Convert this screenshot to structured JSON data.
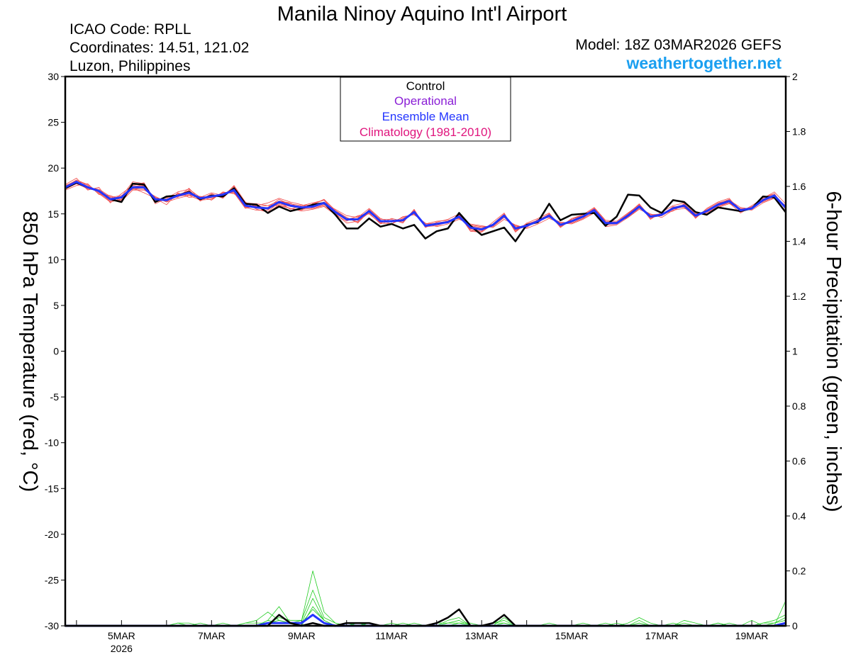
{
  "header": {
    "title": "Manila Ninoy Aquino Int'l Airport",
    "icao": "ICAO Code: RPLL",
    "coordinates": "Coordinates: 14.51, 121.02",
    "region": "Luzon, Philippines",
    "model": "Model: 18Z 03MAR2026 GEFS",
    "site": "weathertogether.net"
  },
  "legend": {
    "control": "Control",
    "operational": "Operational",
    "ensemble_mean": "Ensemble Mean",
    "climatology": "Climatology (1981-2010)"
  },
  "colors": {
    "control": "#000000",
    "operational": "#8a1ed6",
    "ensemble_mean": "#2335ff",
    "climatology": "#e0157d",
    "members_temp": "#f04a4a",
    "members_precip": "#22cc22",
    "site": "#1a9ff0"
  },
  "chart_data": {
    "type": "line",
    "ylabel_left": "850 hPa Temperature (red, °C)",
    "ylabel_right": "6-hour Precipitation (green, inches)",
    "ylim_left": [
      -30,
      30
    ],
    "ylim_right": [
      0,
      2
    ],
    "yticks_left": [
      "30",
      "25",
      "20",
      "15",
      "10",
      "5",
      "0",
      "-5",
      "-10",
      "-15",
      "-20",
      "-25",
      "-30"
    ],
    "yticks_right": [
      "2",
      "1.8",
      "1.6",
      "1.4",
      "1.2",
      "1",
      "0.8",
      "0.6",
      "0.4",
      "0.2",
      "0"
    ],
    "x_start": "2026-03-03T18:00Z",
    "x_step_hours": 6,
    "xticks": [
      {
        "label": "5MAR",
        "sublabel": "2026",
        "x": "2026-03-05T00:00Z"
      },
      {
        "label": "7MAR",
        "sublabel": "",
        "x": "2026-03-07T00:00Z"
      },
      {
        "label": "9MAR",
        "sublabel": "",
        "x": "2026-03-09T00:00Z"
      },
      {
        "label": "11MAR",
        "sublabel": "",
        "x": "2026-03-11T00:00Z"
      },
      {
        "label": "13MAR",
        "sublabel": "",
        "x": "2026-03-13T00:00Z"
      },
      {
        "label": "15MAR",
        "sublabel": "",
        "x": "2026-03-15T00:00Z"
      },
      {
        "label": "17MAR",
        "sublabel": "",
        "x": "2026-03-17T00:00Z"
      },
      {
        "label": "19MAR",
        "sublabel": "",
        "x": "2026-03-19T00:00Z"
      }
    ],
    "temperature": {
      "control": [
        17.8,
        18.4,
        17.9,
        17.5,
        16.6,
        16.3,
        18.3,
        18.2,
        16.3,
        16.9,
        17.0,
        17.4,
        16.6,
        17.0,
        16.9,
        17.8,
        16.1,
        16.0,
        15.1,
        15.8,
        15.3,
        15.6,
        16.0,
        16.2,
        14.9,
        13.4,
        13.4,
        14.5,
        13.6,
        13.9,
        13.4,
        13.8,
        12.3,
        13.1,
        13.4,
        15.1,
        13.7,
        12.7,
        13.1,
        13.5,
        12.0,
        13.8,
        14.1,
        16.1,
        14.3,
        14.9,
        15.0,
        15.1,
        13.7,
        14.7,
        17.1,
        17.0,
        15.7,
        15.1,
        16.5,
        16.3,
        15.2,
        14.9,
        15.7,
        15.5,
        15.3,
        15.6,
        16.9,
        16.8,
        15.2
      ],
      "ensemble_mean": [
        17.9,
        18.5,
        17.9,
        17.5,
        16.6,
        16.8,
        17.9,
        17.9,
        16.6,
        16.5,
        17.0,
        17.3,
        16.7,
        16.9,
        17.1,
        17.6,
        15.9,
        15.7,
        15.6,
        16.3,
        15.9,
        15.7,
        15.8,
        16.2,
        15.2,
        14.4,
        14.4,
        15.3,
        14.2,
        14.2,
        14.3,
        15.2,
        13.7,
        13.9,
        14.1,
        14.7,
        13.5,
        13.3,
        13.8,
        14.8,
        13.4,
        13.7,
        14.2,
        14.8,
        13.8,
        14.2,
        14.7,
        15.4,
        14.0,
        14.0,
        14.8,
        15.8,
        14.7,
        14.9,
        15.6,
        15.9,
        14.8,
        15.3,
        16.0,
        16.4,
        15.4,
        15.6,
        16.5,
        17.0,
        15.7
      ],
      "members": [
        [
          18.0,
          18.7,
          18.2,
          17.3,
          16.4,
          16.9,
          18.5,
          18.3,
          16.1,
          16.7,
          17.4,
          17.7,
          16.8,
          17.3,
          17.0,
          18.0,
          16.2,
          15.8,
          15.1,
          16.0,
          15.6,
          15.4,
          16.1,
          16.5,
          15.0,
          14.0,
          14.2,
          15.1,
          13.9,
          14.3,
          14.1,
          15.3,
          13.6,
          13.7,
          14.1,
          14.9,
          13.2,
          13.0,
          13.9,
          14.9,
          13.2,
          13.8,
          14.0,
          15.0,
          13.5,
          14.4,
          14.9,
          15.3,
          14.1,
          14.0,
          15.0,
          16.1,
          14.6,
          14.8,
          15.8,
          15.7,
          14.6,
          15.5,
          16.2,
          16.5,
          15.7,
          15.5,
          16.8,
          17.2,
          15.6
        ],
        [
          17.7,
          18.3,
          17.8,
          17.7,
          16.9,
          16.4,
          17.6,
          17.6,
          16.9,
          16.3,
          16.7,
          17.0,
          16.5,
          16.6,
          17.3,
          17.3,
          15.6,
          15.9,
          16.2,
          16.7,
          16.3,
          16.0,
          15.6,
          16.0,
          15.5,
          14.8,
          14.6,
          15.6,
          14.5,
          14.1,
          14.6,
          15.0,
          13.9,
          14.2,
          14.3,
          14.5,
          13.8,
          13.6,
          13.6,
          14.6,
          13.7,
          13.5,
          14.4,
          14.6,
          14.1,
          14.0,
          14.5,
          15.6,
          13.8,
          14.1,
          14.6,
          15.5,
          14.9,
          15.0,
          15.3,
          16.1,
          15.0,
          15.1,
          15.8,
          16.2,
          15.1,
          15.8,
          16.3,
          16.8,
          15.9
        ],
        [
          18.2,
          18.9,
          17.6,
          17.9,
          16.2,
          17.2,
          18.1,
          18.4,
          16.4,
          16.9,
          16.8,
          17.8,
          16.5,
          17.2,
          16.7,
          17.9,
          15.7,
          15.4,
          15.4,
          16.4,
          16.1,
          15.9,
          16.2,
          16.5,
          15.3,
          14.6,
          14.1,
          15.5,
          14.4,
          14.4,
          14.0,
          15.5,
          13.5,
          14.1,
          14.4,
          15.0,
          13.3,
          13.1,
          14.1,
          15.1,
          13.0,
          14.0,
          14.5,
          15.1,
          13.6,
          14.5,
          14.9,
          15.7,
          14.3,
          14.2,
          15.1,
          16.0,
          14.4,
          15.2,
          15.9,
          16.2,
          14.5,
          15.6,
          16.3,
          16.7,
          15.2,
          15.9,
          16.7,
          17.4,
          16.1
        ],
        [
          17.6,
          18.1,
          18.3,
          17.1,
          17.0,
          16.5,
          17.8,
          17.3,
          16.7,
          16.0,
          17.3,
          16.8,
          16.9,
          16.5,
          17.4,
          17.2,
          16.2,
          16.1,
          15.9,
          15.9,
          15.6,
          15.3,
          15.5,
          15.8,
          14.9,
          14.2,
          14.8,
          15.0,
          14.0,
          13.9,
          14.7,
          14.9,
          14.0,
          13.6,
          13.9,
          14.4,
          13.9,
          13.7,
          13.5,
          14.4,
          13.8,
          13.4,
          13.9,
          14.5,
          14.0,
          13.9,
          14.4,
          15.1,
          13.6,
          13.8,
          14.6,
          15.6,
          15.0,
          14.6,
          15.4,
          15.6,
          15.2,
          15.0,
          15.7,
          16.1,
          15.6,
          15.4,
          16.2,
          16.7,
          15.3
        ],
        [
          18.1,
          18.6,
          18.0,
          17.4,
          16.6,
          16.7,
          18.3,
          18.0,
          16.3,
          16.6,
          17.1,
          17.5,
          16.6,
          17.1,
          16.9,
          17.7,
          16.0,
          15.6,
          15.7,
          16.6,
          16.0,
          15.8,
          15.9,
          16.3,
          15.2,
          14.5,
          14.3,
          15.2,
          14.1,
          14.2,
          14.2,
          15.2,
          13.7,
          13.8,
          14.1,
          14.8,
          13.4,
          13.2,
          13.8,
          14.8,
          13.3,
          13.6,
          14.2,
          14.8,
          13.8,
          14.2,
          14.7,
          15.4,
          14.0,
          14.0,
          14.8,
          15.9,
          14.7,
          14.9,
          15.6,
          15.9,
          14.8,
          15.3,
          16.0,
          16.4,
          15.4,
          15.6,
          16.5,
          17.0,
          15.7
        ],
        [
          17.8,
          18.4,
          17.7,
          17.6,
          16.8,
          17.0,
          17.7,
          17.9,
          16.8,
          16.4,
          16.9,
          17.1,
          16.8,
          16.7,
          17.2,
          17.5,
          15.8,
          15.9,
          15.5,
          16.1,
          15.8,
          15.6,
          15.7,
          16.1,
          15.1,
          14.3,
          14.5,
          15.4,
          14.3,
          14.1,
          14.4,
          15.1,
          13.8,
          14.0,
          14.2,
          14.6,
          13.6,
          13.4,
          13.7,
          14.7,
          13.5,
          13.8,
          14.1,
          14.9,
          13.9,
          14.1,
          14.6,
          15.3,
          14.1,
          13.9,
          14.9,
          15.7,
          14.8,
          14.8,
          15.5,
          15.8,
          14.9,
          15.2,
          15.9,
          16.3,
          15.3,
          15.7,
          16.4,
          16.9,
          15.8
        ],
        [
          17.9,
          18.7,
          18.1,
          17.2,
          16.3,
          16.6,
          18.0,
          18.1,
          16.5,
          16.8,
          16.9,
          17.6,
          16.4,
          17.0,
          16.8,
          18.1,
          16.3,
          15.5,
          15.2,
          16.3,
          15.5,
          15.9,
          16.0,
          16.6,
          15.4,
          14.6,
          14.0,
          15.3,
          14.0,
          14.5,
          14.2,
          15.4,
          13.6,
          13.9,
          14.0,
          14.9,
          13.1,
          13.0,
          13.9,
          15.0,
          13.1,
          13.9,
          14.3,
          15.0,
          13.6,
          14.4,
          14.8,
          15.6,
          14.2,
          14.1,
          15.0,
          16.0,
          14.5,
          15.0,
          15.7,
          16.0,
          14.6,
          15.4,
          16.1,
          16.6,
          15.5,
          15.7,
          16.6,
          17.2,
          15.5
        ],
        [
          17.8,
          18.3,
          17.8,
          17.6,
          16.7,
          16.9,
          17.7,
          17.7,
          16.8,
          16.3,
          17.2,
          17.0,
          16.9,
          16.8,
          17.3,
          17.4,
          15.7,
          15.8,
          15.9,
          16.4,
          16.2,
          15.5,
          15.6,
          15.9,
          15.0,
          14.4,
          14.7,
          15.2,
          14.3,
          13.9,
          14.5,
          15.0,
          13.9,
          14.0,
          14.2,
          14.5,
          13.7,
          13.5,
          13.7,
          14.7,
          13.6,
          13.6,
          14.2,
          14.7,
          14.0,
          14.0,
          14.5,
          15.2,
          13.8,
          13.9,
          14.7,
          15.7,
          14.9,
          14.8,
          15.5,
          15.8,
          15.0,
          15.2,
          15.9,
          16.2,
          15.4,
          15.5,
          16.4,
          16.9,
          15.9
        ]
      ]
    },
    "precipitation": {
      "control": [
        0,
        0,
        0,
        0,
        0,
        0,
        0,
        0,
        0,
        0,
        0,
        0,
        0,
        0,
        0,
        0,
        0,
        0,
        0,
        0.04,
        0.01,
        0,
        0.01,
        0,
        0,
        0.01,
        0.01,
        0.01,
        0,
        0,
        0,
        0,
        0,
        0.01,
        0.03,
        0.06,
        0,
        0,
        0.01,
        0.04,
        0,
        0,
        0,
        0,
        0,
        0,
        0,
        0,
        0,
        0,
        0,
        0,
        0,
        0,
        0,
        0,
        0,
        0,
        0,
        0,
        0,
        0,
        0,
        0,
        0
      ],
      "ensemble_mean": [
        0,
        0,
        0,
        0,
        0,
        0,
        0,
        0,
        0,
        0,
        0,
        0,
        0,
        0,
        0,
        0,
        0,
        0,
        0.01,
        0.01,
        0.01,
        0.01,
        0.04,
        0.01,
        0,
        0,
        0,
        0,
        0,
        0,
        0,
        0,
        0,
        0,
        0,
        0,
        0,
        0,
        0,
        0,
        0,
        0,
        0,
        0,
        0,
        0,
        0,
        0,
        0,
        0,
        0,
        0,
        0,
        0,
        0,
        0,
        0,
        0,
        0,
        0,
        0,
        0,
        0,
        0,
        0.01
      ],
      "members": [
        [
          0,
          0,
          0,
          0,
          0,
          0,
          0,
          0,
          0,
          0,
          0.01,
          0.01,
          0,
          0,
          0,
          0,
          0.01,
          0.02,
          0.05,
          0.02,
          0.01,
          0.02,
          0.2,
          0.05,
          0.01,
          0,
          0,
          0.01,
          0,
          0,
          0,
          0.01,
          0,
          0.01,
          0.01,
          0.02,
          0,
          0,
          0.01,
          0.02,
          0,
          0,
          0,
          0.01,
          0,
          0,
          0,
          0,
          0.01,
          0,
          0,
          0.02,
          0,
          0,
          0.01,
          0,
          0,
          0,
          0.01,
          0,
          0,
          0.02,
          0,
          0,
          0.09
        ],
        [
          0,
          0,
          0,
          0,
          0,
          0,
          0,
          0,
          0,
          0,
          0,
          0,
          0.01,
          0,
          0,
          0,
          0,
          0,
          0.02,
          0.07,
          0.01,
          0.01,
          0.1,
          0.02,
          0,
          0.01,
          0,
          0,
          0,
          0.01,
          0,
          0,
          0,
          0,
          0.02,
          0.03,
          0,
          0,
          0,
          0.03,
          0,
          0,
          0,
          0,
          0,
          0,
          0.01,
          0,
          0,
          0,
          0.01,
          0.03,
          0.01,
          0,
          0,
          0.02,
          0.01,
          0,
          0,
          0.01,
          0,
          0,
          0.01,
          0.02,
          0.04
        ],
        [
          0,
          0,
          0,
          0,
          0,
          0,
          0,
          0,
          0,
          0,
          0,
          0,
          0,
          0,
          0.01,
          0,
          0.01,
          0.01,
          0.01,
          0.03,
          0.02,
          0.02,
          0.13,
          0.03,
          0.01,
          0,
          0.01,
          0,
          0,
          0,
          0.01,
          0,
          0,
          0,
          0,
          0.01,
          0.01,
          0,
          0.01,
          0.01,
          0,
          0,
          0,
          0,
          0,
          0,
          0,
          0,
          0,
          0.01,
          0,
          0.01,
          0,
          0,
          0,
          0.01,
          0,
          0,
          0.01,
          0,
          0,
          0,
          0.01,
          0.01,
          0.03
        ],
        [
          0,
          0,
          0,
          0,
          0,
          0,
          0,
          0,
          0,
          0,
          0,
          0,
          0,
          0,
          0,
          0,
          0,
          0,
          0.02,
          0.01,
          0.01,
          0.01,
          0.06,
          0.02,
          0,
          0,
          0,
          0,
          0,
          0,
          0,
          0,
          0,
          0,
          0,
          0,
          0,
          0,
          0,
          0,
          0,
          0,
          0,
          0,
          0,
          0,
          0,
          0,
          0,
          0,
          0,
          0,
          0,
          0,
          0,
          0,
          0,
          0,
          0,
          0,
          0,
          0,
          0,
          0,
          0.01
        ],
        [
          0,
          0,
          0,
          0,
          0,
          0,
          0,
          0,
          0,
          0,
          0.01,
          0,
          0,
          0,
          0,
          0,
          0,
          0,
          0.01,
          0.02,
          0.01,
          0,
          0.07,
          0.02,
          0,
          0,
          0,
          0.01,
          0,
          0,
          0,
          0,
          0,
          0,
          0.01,
          0.01,
          0,
          0,
          0,
          0.01,
          0,
          0,
          0,
          0,
          0,
          0,
          0,
          0,
          0,
          0,
          0,
          0.01,
          0,
          0,
          0,
          0,
          0,
          0,
          0,
          0,
          0,
          0,
          0,
          0.01,
          0.02
        ]
      ]
    }
  }
}
